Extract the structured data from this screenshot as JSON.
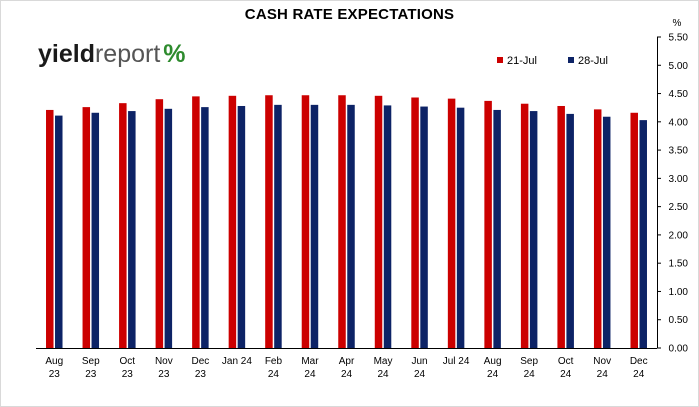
{
  "chart_data": {
    "type": "bar",
    "title": "CASH RATE EXPECTATIONS",
    "ylabel": "%",
    "ylim": [
      0,
      5.5
    ],
    "yticks": [
      "0.00",
      "0.50",
      "1.00",
      "1.50",
      "2.00",
      "2.50",
      "3.00",
      "3.50",
      "4.00",
      "4.50",
      "5.00",
      "5.50"
    ],
    "y_axis_side": "right",
    "grid": false,
    "legend_position": "top-right",
    "categories": [
      [
        "Aug",
        "23"
      ],
      [
        "Sep",
        "23"
      ],
      [
        "Oct",
        "23"
      ],
      [
        "Nov",
        "23"
      ],
      [
        "Dec",
        "23"
      ],
      [
        "Jan 24"
      ],
      [
        "Feb",
        "24"
      ],
      [
        "Mar",
        "24"
      ],
      [
        "Apr",
        "24"
      ],
      [
        "May",
        "24"
      ],
      [
        "Jun",
        "24"
      ],
      [
        "Jul 24"
      ],
      [
        "Aug",
        "24"
      ],
      [
        "Sep",
        "24"
      ],
      [
        "Oct",
        "24"
      ],
      [
        "Nov",
        "24"
      ],
      [
        "Dec",
        "24"
      ]
    ],
    "series": [
      {
        "name": "21-Jul",
        "color": "#cc0000",
        "values": [
          4.21,
          4.26,
          4.33,
          4.4,
          4.45,
          4.46,
          4.47,
          4.47,
          4.47,
          4.46,
          4.43,
          4.41,
          4.37,
          4.32,
          4.28,
          4.22,
          4.16
        ]
      },
      {
        "name": "28-Jul",
        "color": "#0d2366",
        "values": [
          4.11,
          4.16,
          4.19,
          4.23,
          4.26,
          4.28,
          4.3,
          4.3,
          4.3,
          4.29,
          4.27,
          4.25,
          4.21,
          4.19,
          4.14,
          4.09,
          4.03
        ]
      }
    ]
  },
  "logo": {
    "text_a": "yield",
    "text_b": "report",
    "text_pct": "%"
  }
}
